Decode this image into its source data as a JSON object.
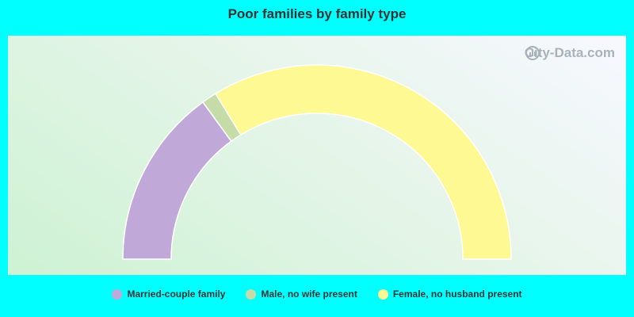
{
  "chart_data": {
    "type": "pie",
    "title": "Poor families by family type",
    "categories": [
      "Married-couple family",
      "Male, no wife present",
      "Female, no husband present"
    ],
    "values": [
      30,
      2.5,
      67.5
    ],
    "colors": [
      "#c0a9d9",
      "#c5dba8",
      "#fff994"
    ],
    "shape": "semicircle-donut",
    "legend_position": "bottom"
  },
  "watermark": {
    "text": "City-Data.com"
  }
}
